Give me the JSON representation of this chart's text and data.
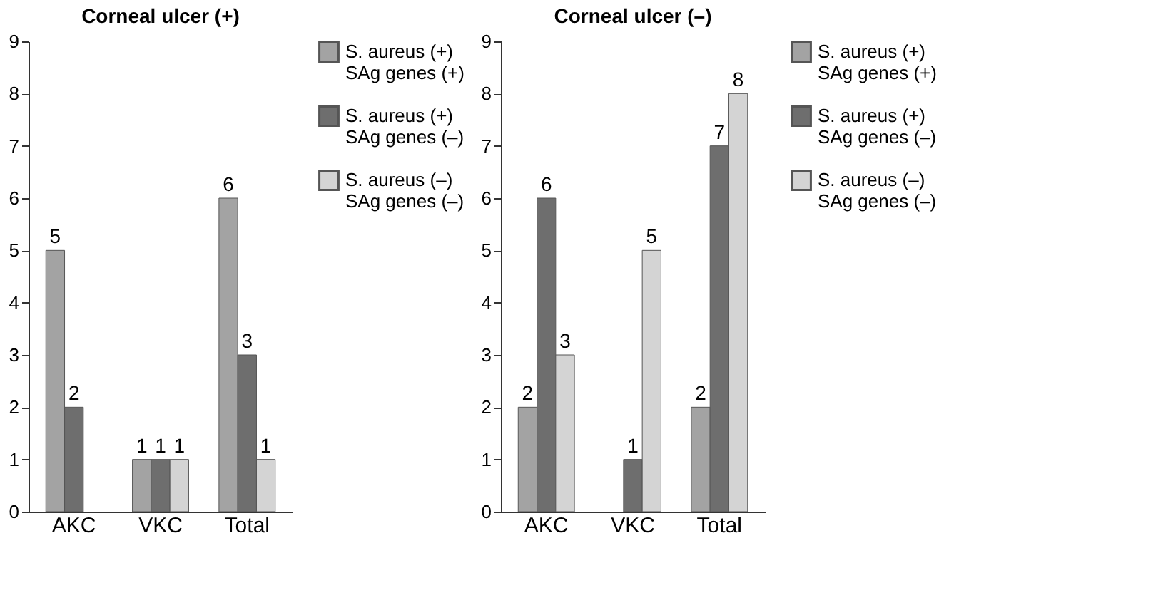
{
  "chart_data": [
    {
      "type": "bar",
      "title": "Corneal ulcer (+)",
      "categories": [
        "AKC",
        "VKC",
        "Total"
      ],
      "ylim": [
        0,
        9
      ],
      "yticks": [
        0,
        1,
        2,
        3,
        4,
        5,
        6,
        7,
        8,
        9
      ],
      "grid": false,
      "legend": "right",
      "data_labels": true,
      "series": [
        {
          "name": "S. aureus (+) SAg genes (+)",
          "color": "#a3a3a3",
          "values": [
            5,
            1,
            6
          ]
        },
        {
          "name": "S. aureus (+) SAg genes (–)",
          "color": "#6e6e6e",
          "values": [
            2,
            1,
            3
          ]
        },
        {
          "name": "S. aureus (–) SAg genes (–)",
          "color": "#d4d4d4",
          "values": [
            null,
            1,
            1
          ]
        }
      ]
    },
    {
      "type": "bar",
      "title": "Corneal ulcer (–)",
      "categories": [
        "AKC",
        "VKC",
        "Total"
      ],
      "ylim": [
        0,
        9
      ],
      "yticks": [
        0,
        1,
        2,
        3,
        4,
        5,
        6,
        7,
        8,
        9
      ],
      "grid": false,
      "legend": "right",
      "data_labels": true,
      "series": [
        {
          "name": "S. aureus (+) SAg genes (+)",
          "color": "#a3a3a3",
          "values": [
            2,
            null,
            2
          ]
        },
        {
          "name": "S. aureus (+) SAg genes (–)",
          "color": "#6e6e6e",
          "values": [
            6,
            1,
            7
          ]
        },
        {
          "name": "S. aureus (–) SAg genes (–)",
          "color": "#d4d4d4",
          "values": [
            3,
            5,
            8
          ]
        }
      ]
    }
  ]
}
